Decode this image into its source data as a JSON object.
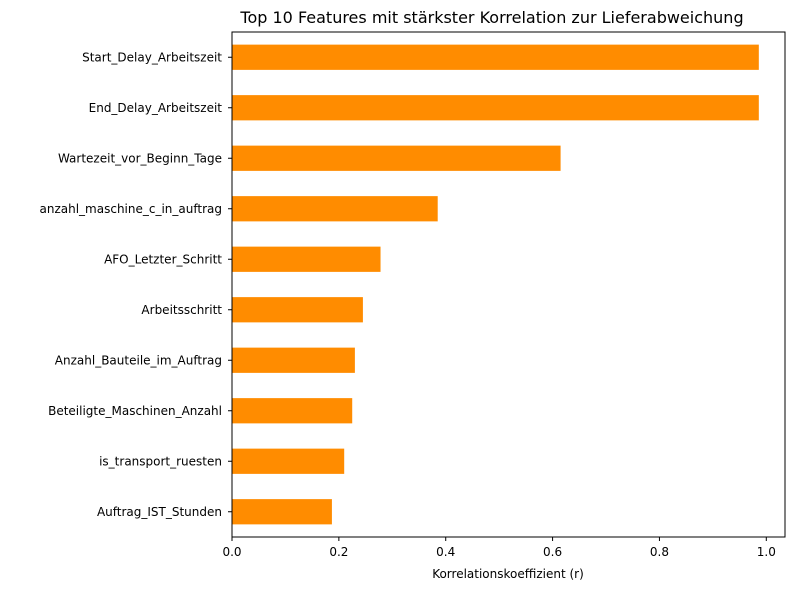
{
  "chart_data": {
    "type": "bar",
    "orientation": "horizontal",
    "title": "Top 10 Features mit stärkster Korrelation zur Lieferabweichung",
    "xlabel": "Korrelationskoeffizient (r)",
    "ylabel": "",
    "xlim": [
      0.0,
      1.035
    ],
    "xticks": [
      0.0,
      0.2,
      0.4,
      0.6,
      0.8,
      1.0
    ],
    "xtick_labels": [
      "0.0",
      "0.2",
      "0.4",
      "0.6",
      "0.8",
      "1.0"
    ],
    "categories": [
      "Start_Delay_Arbeitszeit",
      "End_Delay_Arbeitszeit",
      "Wartezeit_vor_Beginn_Tage",
      "anzahl_maschine_c_in_auftrag",
      "AFO_Letzter_Schritt",
      "Arbeitsschritt",
      "Anzahl_Bauteile_im_Auftrag",
      "Beteiligte_Maschinen_Anzahl",
      "is_transport_ruesten",
      "Auftrag_IST_Stunden"
    ],
    "values": [
      0.986,
      0.986,
      0.615,
      0.385,
      0.278,
      0.245,
      0.23,
      0.225,
      0.21,
      0.187
    ],
    "bar_color": "#ff8c00",
    "grid": false,
    "legend": "none"
  }
}
